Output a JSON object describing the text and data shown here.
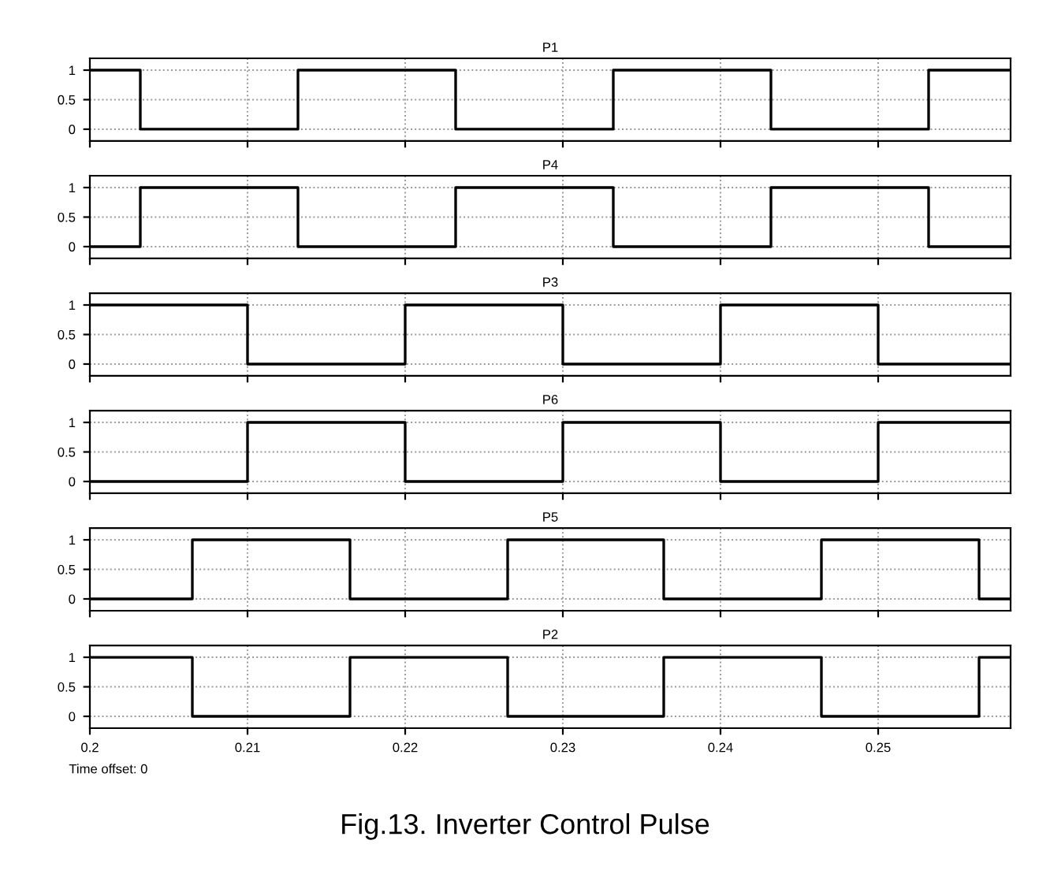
{
  "chart_data": [
    {
      "type": "step",
      "title": "P1",
      "x": [
        0.2,
        0.2032,
        0.2132,
        0.2232,
        0.2332,
        0.2432,
        0.2532,
        0.2584
      ],
      "series": [
        {
          "color": "#000000",
          "values": [
            1,
            0,
            1,
            0,
            1,
            0,
            1,
            1
          ]
        }
      ],
      "xlim": [
        0.2,
        0.2584
      ],
      "ylim": [
        -0.2,
        1.2
      ],
      "xticks": [
        0.2,
        0.21,
        0.22,
        0.23,
        0.24,
        0.25
      ],
      "yticks": [
        0,
        0.5,
        1
      ],
      "grid": true,
      "tick_labels": "y"
    },
    {
      "type": "step",
      "title": "P4",
      "x": [
        0.2,
        0.2032,
        0.2132,
        0.2232,
        0.2332,
        0.2432,
        0.2532,
        0.2584
      ],
      "series": [
        {
          "color": "#000000",
          "values": [
            0,
            1,
            0,
            1,
            0,
            1,
            0,
            0
          ]
        }
      ],
      "xlim": [
        0.2,
        0.2584
      ],
      "ylim": [
        -0.2,
        1.2
      ],
      "xticks": [
        0.2,
        0.21,
        0.22,
        0.23,
        0.24,
        0.25
      ],
      "yticks": [
        0,
        0.5,
        1
      ],
      "grid": true,
      "tick_labels": "y"
    },
    {
      "type": "step",
      "title": "P3",
      "x": [
        0.2,
        0.21,
        0.22,
        0.23,
        0.24,
        0.25,
        0.2584
      ],
      "series": [
        {
          "color": "#000000",
          "values": [
            1,
            0,
            1,
            0,
            1,
            0,
            0
          ]
        }
      ],
      "xlim": [
        0.2,
        0.2584
      ],
      "ylim": [
        -0.2,
        1.2
      ],
      "xticks": [
        0.2,
        0.21,
        0.22,
        0.23,
        0.24,
        0.25
      ],
      "yticks": [
        0,
        0.5,
        1
      ],
      "grid": true,
      "tick_labels": "y"
    },
    {
      "type": "step",
      "title": "P6",
      "x": [
        0.2,
        0.21,
        0.22,
        0.23,
        0.24,
        0.25,
        0.2584
      ],
      "series": [
        {
          "color": "#000000",
          "values": [
            0,
            1,
            0,
            1,
            0,
            1,
            1
          ]
        }
      ],
      "xlim": [
        0.2,
        0.2584
      ],
      "ylim": [
        -0.2,
        1.2
      ],
      "xticks": [
        0.2,
        0.21,
        0.22,
        0.23,
        0.24,
        0.25
      ],
      "yticks": [
        0,
        0.5,
        1
      ],
      "grid": true,
      "tick_labels": "y"
    },
    {
      "type": "step",
      "title": "P5",
      "x": [
        0.2,
        0.2065,
        0.2165,
        0.2265,
        0.2364,
        0.2464,
        0.2564,
        0.2584
      ],
      "series": [
        {
          "color": "#000000",
          "values": [
            0,
            1,
            0,
            1,
            0,
            1,
            0,
            0
          ]
        }
      ],
      "xlim": [
        0.2,
        0.2584
      ],
      "ylim": [
        -0.2,
        1.2
      ],
      "xticks": [
        0.2,
        0.21,
        0.22,
        0.23,
        0.24,
        0.25
      ],
      "yticks": [
        0,
        0.5,
        1
      ],
      "grid": true,
      "tick_labels": "y"
    },
    {
      "type": "step",
      "title": "P2",
      "x": [
        0.2,
        0.2065,
        0.2165,
        0.2265,
        0.2364,
        0.2464,
        0.2564,
        0.2584
      ],
      "series": [
        {
          "color": "#000000",
          "values": [
            1,
            0,
            1,
            0,
            1,
            0,
            1,
            1
          ]
        }
      ],
      "xlim": [
        0.2,
        0.2584
      ],
      "ylim": [
        -0.2,
        1.2
      ],
      "xticks": [
        0.2,
        0.21,
        0.22,
        0.23,
        0.24,
        0.25
      ],
      "yticks": [
        0,
        0.5,
        1
      ],
      "grid": true,
      "annotations": [
        "Time offset: 0",
        "Fig.13. Inverter Control Pulse"
      ]
    }
  ]
}
